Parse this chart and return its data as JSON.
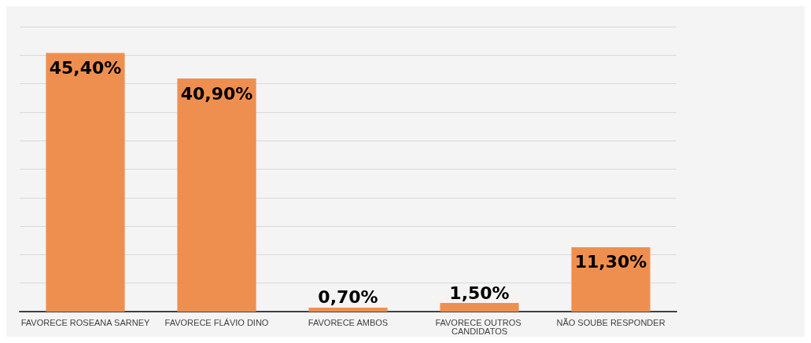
{
  "chart_data": {
    "type": "bar",
    "categories": [
      "FAVORECE ROSEANA SARNEY",
      "FAVORECE FLÁVIO DINO",
      "FAVORECE AMBOS",
      "FAVORECE OUTROS CANDIDATOS",
      "NÃO SOUBE RESPONDER"
    ],
    "values": [
      45.4,
      40.9,
      0.7,
      1.5,
      11.3
    ],
    "value_labels": [
      "45,40%",
      "40,90%",
      "0,70%",
      "1,50%",
      "11,30%"
    ],
    "color": "#ef8f4f",
    "ylim": [
      0,
      50
    ],
    "yticks": [
      {
        "value": 0,
        "label": null
      },
      {
        "value": 5,
        "label": null
      },
      {
        "value": 10,
        "label": null
      },
      {
        "value": 15,
        "label": null
      },
      {
        "value": 20,
        "label": null
      },
      {
        "value": 25,
        "label": null
      },
      {
        "value": 30,
        "label": null
      },
      {
        "value": 35,
        "label": null
      },
      {
        "value": 40,
        "label": null
      },
      {
        "value": 45,
        "label": null
      },
      {
        "value": 50,
        "label": null
      }
    ],
    "grid": "y",
    "tick_labels": "x"
  }
}
